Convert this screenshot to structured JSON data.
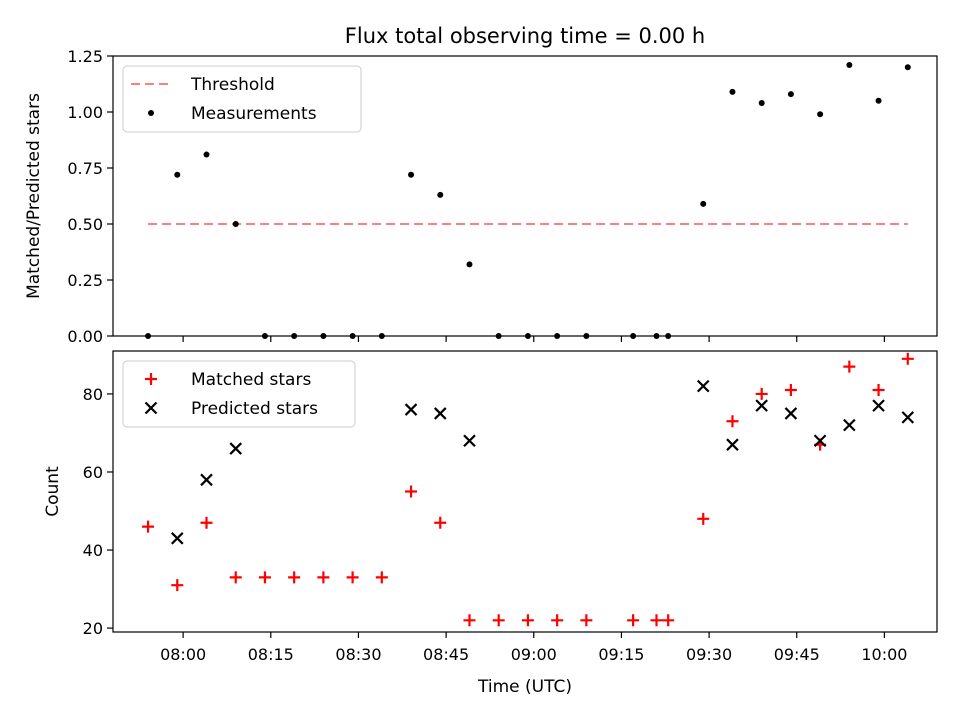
{
  "figure": {
    "title": "Flux total observing time = 0.00 h",
    "xlabel": "Time (UTC)"
  },
  "chart_data": [
    {
      "type": "scatter",
      "ylabel": "Matched/Predicted stars",
      "ylim": [
        0.0,
        1.25
      ],
      "yticks": [
        "0.00",
        "0.25",
        "0.50",
        "0.75",
        "1.00",
        "1.25"
      ],
      "xlim": [
        "07:48",
        "10:09"
      ],
      "xticks": [
        "08:00",
        "08:15",
        "08:30",
        "08:45",
        "09:00",
        "09:15",
        "09:30",
        "09:45",
        "10:00"
      ],
      "legend": "top-left",
      "series": [
        {
          "name": "Threshold",
          "kind": "dashed-line",
          "color": "#ff7f7f",
          "points": [
            [
              "07:54",
              0.5
            ],
            [
              "10:04",
              0.5
            ]
          ]
        },
        {
          "name": "Measurements",
          "kind": "dot",
          "color": "#000000",
          "points": [
            [
              "07:54",
              0.0
            ],
            [
              "07:59",
              0.72
            ],
            [
              "08:04",
              0.81
            ],
            [
              "08:09",
              0.5
            ],
            [
              "08:14",
              0.0
            ],
            [
              "08:19",
              0.0
            ],
            [
              "08:24",
              0.0
            ],
            [
              "08:29",
              0.0
            ],
            [
              "08:34",
              0.0
            ],
            [
              "08:39",
              0.72
            ],
            [
              "08:44",
              0.63
            ],
            [
              "08:49",
              0.32
            ],
            [
              "08:54",
              0.0
            ],
            [
              "08:59",
              0.0
            ],
            [
              "09:04",
              0.0
            ],
            [
              "09:09",
              0.0
            ],
            [
              "09:17",
              0.0
            ],
            [
              "09:21",
              0.0
            ],
            [
              "09:23",
              0.0
            ],
            [
              "09:29",
              0.59
            ],
            [
              "09:34",
              1.09
            ],
            [
              "09:39",
              1.04
            ],
            [
              "09:44",
              1.08
            ],
            [
              "09:49",
              0.99
            ],
            [
              "09:54",
              1.21
            ],
            [
              "09:59",
              1.05
            ],
            [
              "10:04",
              1.2
            ]
          ]
        }
      ]
    },
    {
      "type": "scatter",
      "ylabel": "Count",
      "ylim": [
        19,
        91
      ],
      "yticks": [
        "20",
        "40",
        "60",
        "80"
      ],
      "xlim": [
        "07:48",
        "10:09"
      ],
      "xticks": [
        "08:00",
        "08:15",
        "08:30",
        "08:45",
        "09:00",
        "09:15",
        "09:30",
        "09:45",
        "10:00"
      ],
      "legend": "top-left",
      "series": [
        {
          "name": "Matched stars",
          "kind": "plus",
          "color": "#ff0000",
          "points": [
            [
              "07:54",
              46
            ],
            [
              "07:59",
              31
            ],
            [
              "08:04",
              47
            ],
            [
              "08:09",
              33
            ],
            [
              "08:14",
              33
            ],
            [
              "08:19",
              33
            ],
            [
              "08:24",
              33
            ],
            [
              "08:29",
              33
            ],
            [
              "08:34",
              33
            ],
            [
              "08:39",
              55
            ],
            [
              "08:44",
              47
            ],
            [
              "08:49",
              22
            ],
            [
              "08:54",
              22
            ],
            [
              "08:59",
              22
            ],
            [
              "09:04",
              22
            ],
            [
              "09:09",
              22
            ],
            [
              "09:17",
              22
            ],
            [
              "09:21",
              22
            ],
            [
              "09:23",
              22
            ],
            [
              "09:29",
              48
            ],
            [
              "09:34",
              73
            ],
            [
              "09:39",
              80
            ],
            [
              "09:44",
              81
            ],
            [
              "09:49",
              67
            ],
            [
              "09:54",
              87
            ],
            [
              "09:59",
              81
            ],
            [
              "10:04",
              89
            ]
          ]
        },
        {
          "name": "Predicted stars",
          "kind": "x",
          "color": "#000000",
          "points": [
            [
              "07:59",
              43
            ],
            [
              "08:04",
              58
            ],
            [
              "08:09",
              66
            ],
            [
              "08:39",
              76
            ],
            [
              "08:44",
              75
            ],
            [
              "08:49",
              68
            ],
            [
              "09:29",
              82
            ],
            [
              "09:34",
              67
            ],
            [
              "09:39",
              77
            ],
            [
              "09:44",
              75
            ],
            [
              "09:49",
              68
            ],
            [
              "09:54",
              72
            ],
            [
              "09:59",
              77
            ],
            [
              "10:04",
              74
            ]
          ]
        }
      ]
    }
  ]
}
